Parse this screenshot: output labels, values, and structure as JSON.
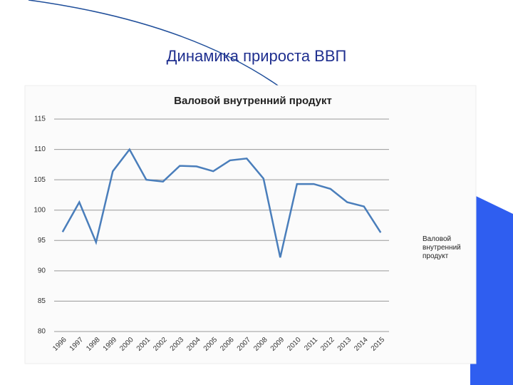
{
  "slide_title": "Динамика прироста ВВП",
  "chart_data": {
    "type": "line",
    "title": "Валовой внутренний продукт",
    "categories": [
      "1996",
      "1997",
      "1998",
      "1999",
      "2000",
      "2001",
      "2002",
      "2003",
      "2004",
      "2005",
      "2006",
      "2007",
      "2008",
      "2009",
      "2010",
      "2011",
      "2012",
      "2013",
      "2014",
      "2015"
    ],
    "series": [
      {
        "name": "Валовой внутренний продукт",
        "color": "#4a7ebb",
        "values": [
          96.4,
          101.3,
          94.7,
          106.4,
          110.0,
          105.0,
          104.7,
          107.3,
          107.2,
          106.4,
          108.2,
          108.5,
          105.2,
          92.2,
          104.3,
          104.3,
          103.5,
          101.3,
          100.6,
          96.3
        ]
      }
    ],
    "ylim": [
      80,
      115
    ],
    "yticks": [
      80,
      85,
      90,
      95,
      100,
      105,
      110,
      115
    ],
    "grid": true,
    "legend": "right"
  }
}
